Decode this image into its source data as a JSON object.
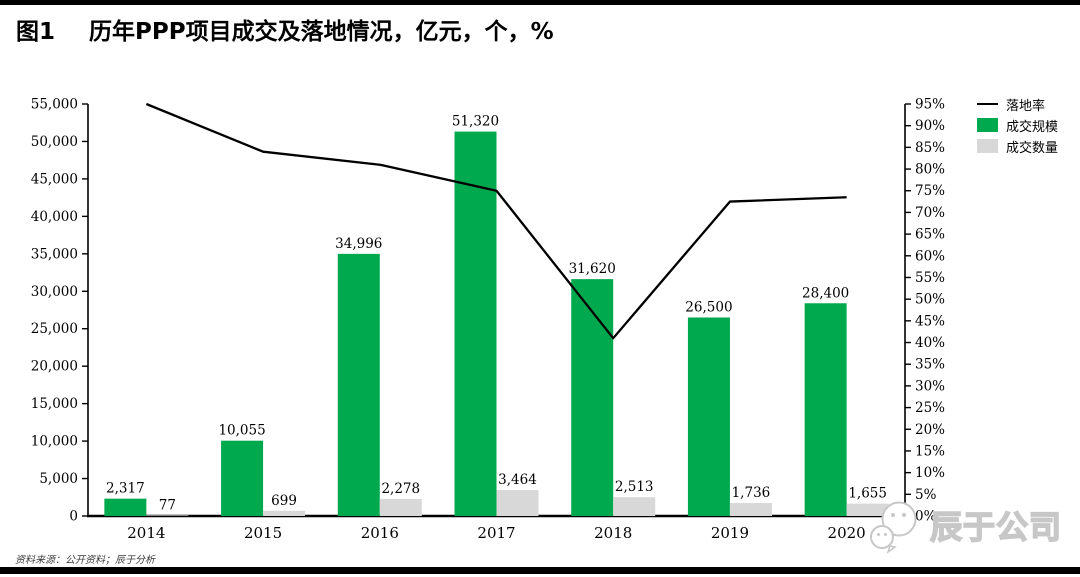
{
  "page": {
    "figure_label": "图1",
    "title": "历年PPP项目成交及落地情况，亿元，个，%",
    "source_note": "资料来源：公开资料；辰于分析",
    "watermark_text": "辰于公司"
  },
  "chart_data": {
    "type": "bar",
    "title": "历年PPP项目成交及落地情况，亿元，个，%",
    "categories": [
      "2014",
      "2015",
      "2016",
      "2017",
      "2018",
      "2019",
      "2020"
    ],
    "series": [
      {
        "name": "落地率",
        "type": "line",
        "axis": "right",
        "color": "#000000",
        "values": [
          95,
          84,
          81,
          75,
          41,
          72.5,
          73.5
        ]
      },
      {
        "name": "成交规模",
        "type": "bar",
        "axis": "left",
        "color": "#00A94E",
        "values": [
          2317,
          10055,
          34996,
          51320,
          31620,
          26500,
          28400
        ]
      },
      {
        "name": "成交数量",
        "type": "bar",
        "axis": "left",
        "color": "#D8D8D8",
        "values": [
          77,
          699,
          2278,
          3464,
          2513,
          1736,
          1655
        ]
      }
    ],
    "left_axis": {
      "min": 0,
      "max": 55000,
      "step": 5000
    },
    "right_axis": {
      "min": 0,
      "max": 95,
      "step": 5,
      "suffix": "%"
    },
    "legend_position": "top-right",
    "grid": false,
    "data_labels": true
  }
}
